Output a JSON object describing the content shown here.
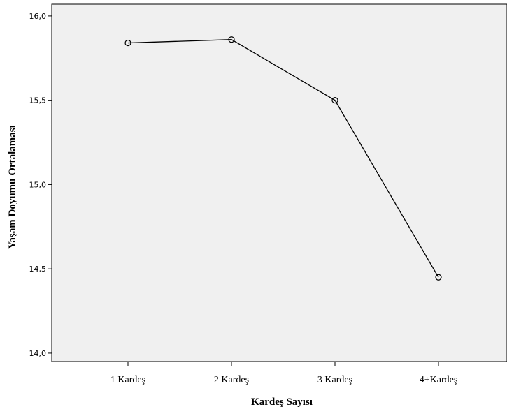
{
  "chart_data": {
    "type": "line",
    "title": "",
    "xlabel": "Kardeş Sayısı",
    "ylabel": "Yaşam Doyumu Ortalaması",
    "categories": [
      "1 Kardeş",
      "2 Kardeş",
      "3 Kardeş",
      "4+Kardeş"
    ],
    "series": [
      {
        "values": [
          15.84,
          15.86,
          15.5,
          14.45
        ]
      }
    ],
    "ylim": [
      13.95,
      16.07
    ],
    "yticks": [
      14.0,
      14.5,
      15.0,
      15.5,
      16.0
    ],
    "ytick_labels": [
      "14,0",
      "14,5",
      "15,0",
      "15,5",
      "16,0"
    ],
    "grid": false,
    "marker": "open-circle",
    "colors": {
      "background": "#f0f0f0",
      "line": "#000000"
    }
  }
}
